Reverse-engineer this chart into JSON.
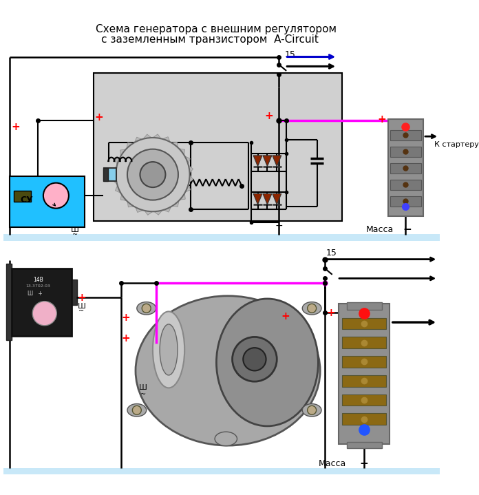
{
  "title_line1": "Схема генератора с внешним регулятором",
  "title_line2": "с заземленным транзистором  A-Circuit",
  "bg_color": "#ffffff",
  "pink_wire": "#ff00ff",
  "blue_arrow": "#0000cc",
  "red_plus": "#ff0000",
  "dark_red": "#8b2500",
  "massa_text": "Масса",
  "k_starter_text": "К стартеру",
  "label_15": "15",
  "label_sh": "Ш",
  "label_su": "СУ",
  "ground_bar": "#c8e8f8"
}
